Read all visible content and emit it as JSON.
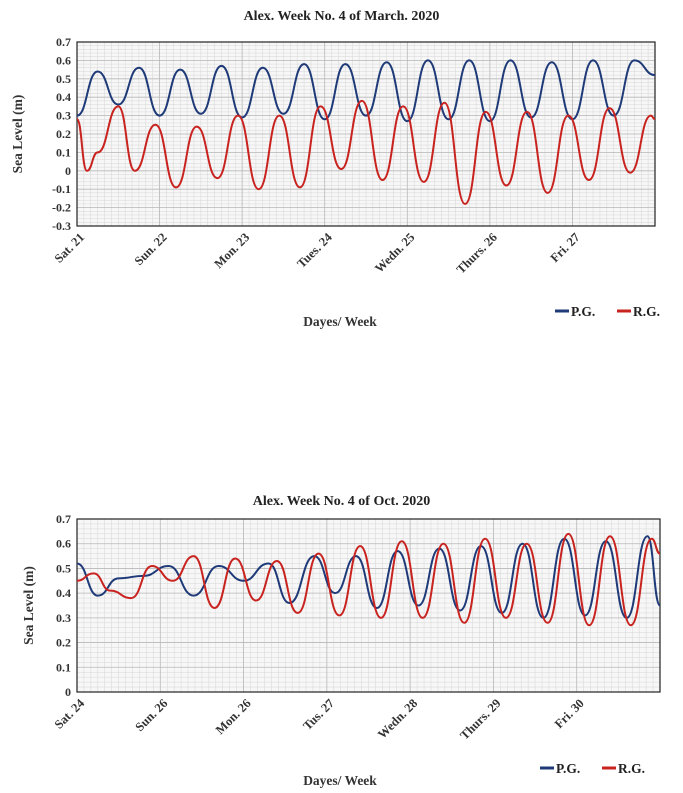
{
  "chart_data": [
    {
      "type": "line",
      "title": "Alex. Week No. 4 of March. 2020",
      "xlabel": "Dayes/ Week",
      "ylabel": "Sea Level (m)",
      "ylim": [
        -0.3,
        0.7
      ],
      "yticks": [
        "0.7",
        "0.6",
        "0.5",
        "0.4",
        "0.3",
        "0.2",
        "0.1",
        "0",
        "-0.1",
        "-0.2",
        "-0.3"
      ],
      "ytick_values": [
        0.7,
        0.6,
        0.5,
        0.4,
        0.3,
        0.2,
        0.1,
        0,
        -0.1,
        -0.2,
        -0.3
      ],
      "categories": [
        "Sat. 21",
        "Sun. 22",
        "Mon. 23",
        "Tues. 24",
        "Wedn. 25",
        "Thurs. 26",
        "Fri. 27"
      ],
      "grid": true,
      "legend_position": "bottom-right",
      "series": [
        {
          "name": "P.G.",
          "color": "#1f3a78",
          "x": [
            0,
            0.25,
            0.5,
            0.75,
            1,
            1.25,
            1.5,
            1.75,
            2,
            2.25,
            2.5,
            2.75,
            3,
            3.25,
            3.5,
            3.75,
            4,
            4.25,
            4.5,
            4.75,
            5,
            5.25,
            5.5,
            5.75,
            6,
            6.25,
            6.5,
            6.75,
            7
          ],
          "values": [
            0.3,
            0.54,
            0.36,
            0.56,
            0.3,
            0.55,
            0.31,
            0.57,
            0.29,
            0.56,
            0.31,
            0.58,
            0.28,
            0.58,
            0.3,
            0.59,
            0.27,
            0.6,
            0.28,
            0.6,
            0.27,
            0.6,
            0.29,
            0.59,
            0.28,
            0.6,
            0.3,
            0.6,
            0.52
          ]
        },
        {
          "name": "R.G.",
          "color": "#c8231f",
          "x": [
            0,
            0.12,
            0.25,
            0.5,
            0.7,
            0.95,
            1.2,
            1.45,
            1.7,
            1.95,
            2.2,
            2.45,
            2.7,
            2.95,
            3.2,
            3.45,
            3.7,
            3.95,
            4.2,
            4.45,
            4.7,
            4.95,
            5.2,
            5.45,
            5.7,
            5.95,
            6.2,
            6.45,
            6.7,
            6.95,
            7
          ],
          "values": [
            0.28,
            0.0,
            0.1,
            0.35,
            0.0,
            0.25,
            -0.09,
            0.24,
            -0.04,
            0.3,
            -0.1,
            0.3,
            -0.09,
            0.35,
            0.01,
            0.38,
            -0.05,
            0.35,
            -0.06,
            0.37,
            -0.18,
            0.32,
            -0.08,
            0.32,
            -0.12,
            0.3,
            -0.05,
            0.34,
            -0.01,
            0.3,
            0.28
          ]
        }
      ]
    },
    {
      "type": "line",
      "title": "Alex. Week No. 4 of Oct. 2020",
      "xlabel": "Dayes/ Week",
      "ylabel": "Sea Level (m)",
      "ylim": [
        0,
        0.7
      ],
      "yticks": [
        "0.7",
        "0.6",
        "0.5",
        "0.4",
        "0.3",
        "0.2",
        "0.1",
        "0"
      ],
      "ytick_values": [
        0.7,
        0.6,
        0.5,
        0.4,
        0.3,
        0.2,
        0.1,
        0
      ],
      "categories": [
        "Sat. 24",
        "Sun. 26",
        "Mon. 26",
        "Tus. 27",
        "Wedn. 28",
        "Thurs. 29",
        "Fri. 30"
      ],
      "grid": true,
      "legend_position": "bottom-right",
      "series": [
        {
          "name": "P.G.",
          "color": "#1f3a78",
          "x": [
            0,
            0.25,
            0.5,
            0.8,
            1.1,
            1.4,
            1.7,
            2.0,
            2.3,
            2.55,
            2.85,
            3.1,
            3.35,
            3.6,
            3.85,
            4.1,
            4.35,
            4.6,
            4.85,
            5.1,
            5.35,
            5.6,
            5.85,
            6.1,
            6.35,
            6.6,
            6.85,
            7
          ],
          "values": [
            0.52,
            0.39,
            0.46,
            0.47,
            0.51,
            0.39,
            0.51,
            0.45,
            0.52,
            0.36,
            0.55,
            0.4,
            0.55,
            0.34,
            0.57,
            0.35,
            0.58,
            0.33,
            0.59,
            0.32,
            0.6,
            0.3,
            0.62,
            0.31,
            0.61,
            0.3,
            0.63,
            0.35
          ]
        },
        {
          "name": "R.G.",
          "color": "#c8231f",
          "x": [
            0,
            0.2,
            0.4,
            0.65,
            0.9,
            1.15,
            1.4,
            1.65,
            1.9,
            2.15,
            2.4,
            2.65,
            2.9,
            3.15,
            3.4,
            3.65,
            3.9,
            4.15,
            4.4,
            4.65,
            4.9,
            5.15,
            5.4,
            5.65,
            5.9,
            6.15,
            6.4,
            6.65,
            6.9,
            7
          ],
          "values": [
            0.45,
            0.48,
            0.41,
            0.38,
            0.51,
            0.45,
            0.55,
            0.34,
            0.54,
            0.37,
            0.53,
            0.32,
            0.56,
            0.31,
            0.59,
            0.3,
            0.61,
            0.3,
            0.6,
            0.28,
            0.62,
            0.3,
            0.6,
            0.28,
            0.64,
            0.27,
            0.63,
            0.27,
            0.62,
            0.56
          ]
        }
      ]
    }
  ]
}
